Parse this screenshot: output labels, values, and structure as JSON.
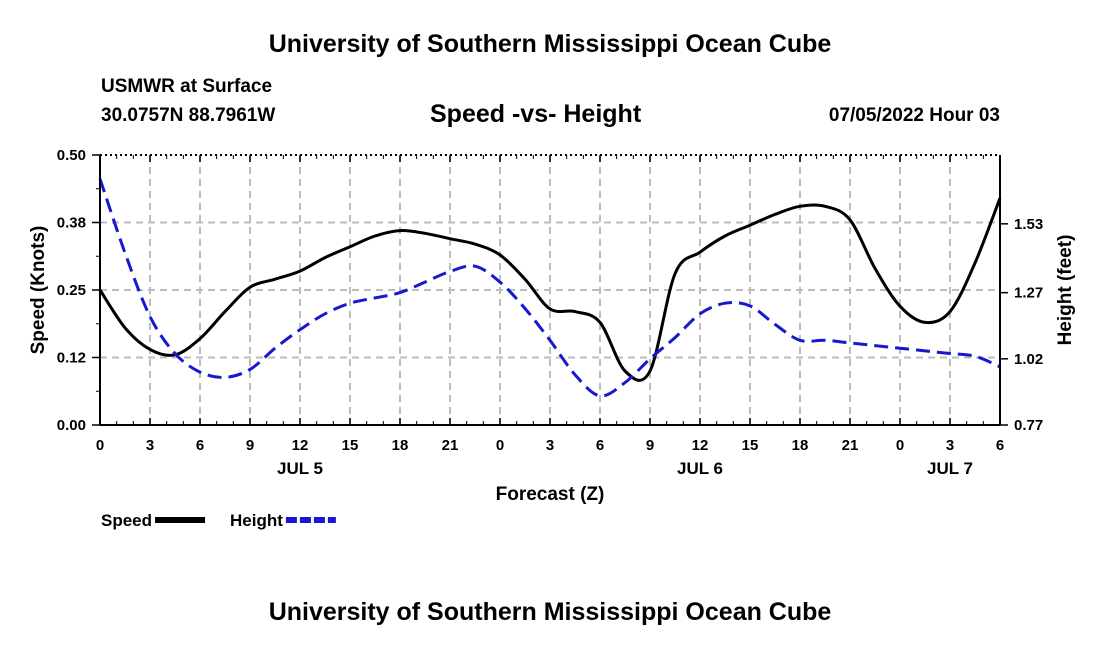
{
  "header": {
    "title": "University of Southern Mississippi Ocean Cube",
    "footer_title": "University of Southern Mississippi Ocean Cube",
    "station_name": "USMWR at Surface",
    "station_coords": "30.0757N  88.7961W",
    "datetime": "07/05/2022 Hour 03"
  },
  "chart_data": {
    "type": "line",
    "title": "Speed -vs- Height",
    "xlabel": "Forecast (Z)",
    "ylabel": "Speed (Knots)",
    "y2label": "Height (feet)",
    "x_hours": [
      0,
      54
    ],
    "x_ticks": [
      "0",
      "3",
      "6",
      "9",
      "12",
      "15",
      "18",
      "21",
      "0",
      "3",
      "6",
      "9",
      "12",
      "15",
      "18",
      "21",
      "0",
      "3",
      "6"
    ],
    "day_labels": [
      {
        "label": "JUL 5",
        "hour": 12
      },
      {
        "label": "JUL 6",
        "hour": 36
      },
      {
        "label": "JUL 7",
        "hour": 51
      }
    ],
    "ylim": [
      0,
      0.5
    ],
    "y_ticks": [
      {
        "value": 0,
        "label": "0.00"
      },
      {
        "value": 0.125,
        "label": "0.12"
      },
      {
        "value": 0.25,
        "label": "0.25"
      },
      {
        "value": 0.375,
        "label": "0.38"
      },
      {
        "value": 0.5,
        "label": "0.50"
      }
    ],
    "y2lim": [
      0.77,
      1.79
    ],
    "y2_ticks": [
      {
        "value": 0.77,
        "label": "0.77"
      },
      {
        "value": 1.02,
        "label": "1.02"
      },
      {
        "value": 1.27,
        "label": "1.27"
      },
      {
        "value": 1.53,
        "label": "1.53"
      }
    ],
    "series": [
      {
        "name": "Speed",
        "axis": "left",
        "color": "#000000",
        "style": "solid",
        "x": [
          0,
          1.5,
          3,
          4.5,
          6,
          7.5,
          9,
          10.5,
          12,
          13.5,
          15,
          16.5,
          18,
          19.5,
          21,
          22.5,
          24,
          25.5,
          27,
          28.5,
          30,
          31.5,
          33,
          34.5,
          36,
          37.5,
          39,
          40.5,
          42,
          43.5,
          45,
          46.5,
          48,
          49.5,
          51,
          52.5,
          54
        ],
        "values": [
          0.25,
          0.18,
          0.14,
          0.13,
          0.16,
          0.21,
          0.255,
          0.27,
          0.285,
          0.31,
          0.33,
          0.35,
          0.36,
          0.355,
          0.345,
          0.335,
          0.315,
          0.27,
          0.215,
          0.21,
          0.19,
          0.1,
          0.1,
          0.28,
          0.32,
          0.35,
          0.37,
          0.39,
          0.405,
          0.405,
          0.38,
          0.29,
          0.22,
          0.19,
          0.21,
          0.3,
          0.42
        ]
      },
      {
        "name": "Height",
        "axis": "right",
        "color": "#1818d0",
        "style": "dashed",
        "x": [
          0,
          1.5,
          3,
          4.5,
          6,
          7.5,
          9,
          10.5,
          12,
          13.5,
          15,
          16.5,
          18,
          19.5,
          21,
          22.5,
          24,
          25.5,
          27,
          28.5,
          30,
          31.5,
          33,
          34.5,
          36,
          37.5,
          39,
          40.5,
          42,
          43.5,
          45,
          46.5,
          48,
          49.5,
          51,
          52.5,
          54
        ],
        "values": [
          1.7,
          1.42,
          1.18,
          1.04,
          0.97,
          0.95,
          0.98,
          1.06,
          1.13,
          1.19,
          1.23,
          1.25,
          1.27,
          1.31,
          1.35,
          1.37,
          1.31,
          1.21,
          1.09,
          0.96,
          0.88,
          0.93,
          1.02,
          1.1,
          1.19,
          1.23,
          1.22,
          1.15,
          1.09,
          1.09,
          1.08,
          1.07,
          1.06,
          1.05,
          1.04,
          1.03,
          0.99
        ]
      }
    ],
    "legend": [
      {
        "label": "Speed",
        "color": "#000000",
        "style": "solid"
      },
      {
        "label": "Height",
        "color": "#1818d0",
        "style": "dashed"
      }
    ]
  }
}
